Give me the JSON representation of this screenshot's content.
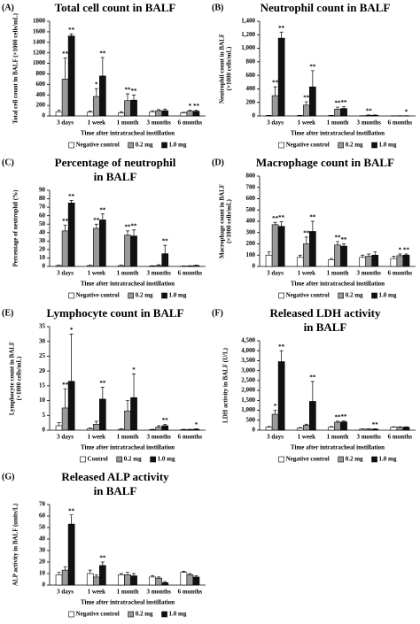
{
  "chart_data": [
    {
      "type": "bar",
      "panel": "(A)",
      "title": [
        "Total cell count in BALF"
      ],
      "ylabel": [
        "Total cell count in BALF (×1000 cells/mL)"
      ],
      "xlabel": "Time after intratracheal instillation",
      "categories": [
        "3 days",
        "1 week",
        "1 month",
        "3 months",
        "6 months"
      ],
      "ylim": [
        0,
        1800
      ],
      "yticks": [
        0,
        200,
        400,
        600,
        800,
        1000,
        1200,
        1400,
        1600,
        1800
      ],
      "series": [
        {
          "name": "Negative control",
          "color": "#ffffff",
          "values": [
            80,
            70,
            60,
            80,
            60
          ],
          "errors": [
            30,
            20,
            20,
            20,
            10
          ],
          "significance": [
            null,
            null,
            null,
            null,
            null
          ]
        },
        {
          "name": "0.2 mg",
          "color": "#9a9a9a",
          "values": [
            700,
            370,
            290,
            100,
            90
          ],
          "errors": [
            400,
            150,
            130,
            20,
            20
          ],
          "significance": [
            "**",
            "*",
            "**",
            null,
            "*"
          ]
        },
        {
          "name": "1.0 mg",
          "color": "#111111",
          "values": [
            1520,
            760,
            300,
            100,
            90
          ],
          "errors": [
            40,
            350,
            100,
            30,
            20
          ],
          "significance": [
            "**",
            "**",
            "**",
            null,
            "**"
          ]
        }
      ]
    },
    {
      "type": "bar",
      "panel": "(B)",
      "title": [
        "Neutrophil count in BALF"
      ],
      "ylabel": [
        "Neutrophil count in BALF",
        "(×1000 cells/mL)"
      ],
      "xlabel": "Time after intratracheal instillation",
      "categories": [
        "3 days",
        "1 week",
        "1 month",
        "3 months",
        "6 months"
      ],
      "ylim": [
        0,
        1400
      ],
      "yticks": [
        0,
        200,
        400,
        600,
        800,
        {
          "value": 1000,
          "label": "1,000"
        },
        {
          "value": 1200,
          "label": "1,200"
        },
        {
          "value": 1400,
          "label": "1,400"
        }
      ],
      "series": [
        {
          "name": "Negative control",
          "color": "#ffffff",
          "values": [
            5,
            5,
            5,
            2,
            1
          ],
          "errors": [
            3,
            3,
            3,
            1,
            1
          ],
          "significance": [
            null,
            null,
            null,
            null,
            null
          ]
        },
        {
          "name": "0.2 mg",
          "color": "#9a9a9a",
          "values": [
            300,
            160,
            100,
            10,
            2
          ],
          "errors": [
            130,
            50,
            30,
            5,
            1
          ],
          "significance": [
            "**",
            "**",
            "**",
            "**",
            null
          ]
        },
        {
          "name": "1.0 mg",
          "color": "#111111",
          "values": [
            1150,
            430,
            110,
            10,
            2
          ],
          "errors": [
            90,
            240,
            30,
            5,
            1
          ],
          "significance": [
            "**",
            "**",
            "**",
            null,
            "*"
          ]
        }
      ]
    },
    {
      "type": "bar",
      "panel": "(C)",
      "title": [
        "Percentage of neutrophil",
        "in BALF"
      ],
      "ylabel": [
        "Percentage of neutrophil (%)"
      ],
      "xlabel": "Time after intratracheal instillation",
      "categories": [
        "3 days",
        "1 week",
        "1 month",
        "3 months",
        "6 months"
      ],
      "ylim": [
        0,
        90
      ],
      "yticks": [
        0,
        10,
        20,
        30,
        40,
        50,
        60,
        70,
        80,
        90
      ],
      "series": [
        {
          "name": "Negative control",
          "color": "#ffffff",
          "values": [
            1,
            1,
            1,
            0.5,
            0.3
          ],
          "errors": [
            0.5,
            0.5,
            0.5,
            0.3,
            0.2
          ],
          "significance": [
            null,
            null,
            null,
            null,
            null
          ]
        },
        {
          "name": "0.2 mg",
          "color": "#9a9a9a",
          "values": [
            42,
            45,
            37,
            1,
            0.5
          ],
          "errors": [
            7,
            5,
            5,
            1,
            0.3
          ],
          "significance": [
            "**",
            "**",
            "**",
            null,
            null
          ]
        },
        {
          "name": "1.0 mg",
          "color": "#111111",
          "values": [
            75,
            55,
            36,
            15,
            1
          ],
          "errors": [
            3,
            7,
            7,
            10,
            0.5
          ],
          "significance": [
            "**",
            "**",
            "**",
            "**",
            null
          ]
        }
      ]
    },
    {
      "type": "bar",
      "panel": "(D)",
      "title": [
        "Macrophage count in BALF"
      ],
      "ylabel": [
        "Macrophage count in BALF",
        "(×1000 cells/mL)"
      ],
      "xlabel": "Time after intratracheal instillation",
      "categories": [
        "3 days",
        "1 week",
        "1 month",
        "3 months",
        "6 months"
      ],
      "ylim": [
        0,
        800
      ],
      "yticks": [
        0,
        100,
        200,
        300,
        400,
        500,
        600,
        700,
        800
      ],
      "series": [
        {
          "name": "Negative control",
          "color": "#ffffff",
          "values": [
            100,
            80,
            60,
            80,
            70
          ],
          "errors": [
            30,
            20,
            10,
            20,
            20
          ],
          "significance": [
            null,
            null,
            null,
            null,
            null
          ]
        },
        {
          "name": "0.2 mg",
          "color": "#9a9a9a",
          "values": [
            370,
            200,
            190,
            90,
            95
          ],
          "errors": [
            20,
            60,
            30,
            20,
            15
          ],
          "significance": [
            "**",
            "**",
            "**",
            null,
            "*"
          ]
        },
        {
          "name": "1.0 mg",
          "color": "#111111",
          "values": [
            355,
            310,
            180,
            100,
            100
          ],
          "errors": [
            40,
            90,
            20,
            30,
            10
          ],
          "significance": [
            "**",
            "**",
            "**",
            null,
            "**"
          ]
        }
      ]
    },
    {
      "type": "bar",
      "panel": "(E)",
      "title": [
        "Lymphocyte count in BALF"
      ],
      "ylabel": [
        "Lymphocyte count in BALF",
        "(×1000 cells/mL)"
      ],
      "xlabel": "Time after intratracheal instillation",
      "categories": [
        "3 days",
        "1 week",
        "1 month",
        "3 months",
        "6 months"
      ],
      "ylim": [
        0,
        35
      ],
      "yticks": [
        0,
        5,
        10,
        15,
        20,
        25,
        30,
        35
      ],
      "series": [
        {
          "name": "Control",
          "color": "#ffffff",
          "values": [
            1.5,
            0.5,
            0.3,
            0.2,
            0.2
          ],
          "errors": [
            1,
            0.3,
            0.2,
            0.1,
            0.1
          ],
          "significance": [
            null,
            null,
            null,
            null,
            null
          ]
        },
        {
          "name": "0.2 mg",
          "color": "#9a9a9a",
          "values": [
            7.5,
            2,
            6.5,
            1,
            0.2
          ],
          "errors": [
            6.5,
            1,
            3.5,
            0.5,
            0.1
          ],
          "significance": [
            "**",
            null,
            null,
            null,
            null
          ]
        },
        {
          "name": "1.0 mg",
          "color": "#111111",
          "values": [
            16.5,
            10.5,
            11,
            1.5,
            0.3
          ],
          "errors": [
            16,
            4,
            8,
            0.5,
            0.2
          ],
          "significance": [
            "*",
            "**",
            "*",
            "**",
            "*"
          ]
        }
      ]
    },
    {
      "type": "bar",
      "panel": "(F)",
      "title": [
        "Released LDH activity",
        "in BALF"
      ],
      "ylabel": [
        "LDH activity in BALF (U/L)"
      ],
      "xlabel": "Time after intratracheal instillation",
      "categories": [
        "3 days",
        "1 week",
        "1 month",
        "3 months",
        "6 months"
      ],
      "ylim": [
        0,
        4500
      ],
      "yticks": [
        0,
        500,
        {
          "value": 1000,
          "label": "1,000"
        },
        {
          "value": 1500,
          "label": "1,500"
        },
        {
          "value": 2000,
          "label": "2,000"
        },
        {
          "value": 2500,
          "label": "2,500"
        },
        {
          "value": 3000,
          "label": "3,000"
        },
        {
          "value": 3500,
          "label": "3,500"
        },
        {
          "value": 4000,
          "label": "4,000"
        },
        {
          "value": 4500,
          "label": "4,500"
        }
      ],
      "series": [
        {
          "name": "Negative control",
          "color": "#ffffff",
          "values": [
            150,
            100,
            150,
            50,
            150
          ],
          "errors": [
            30,
            30,
            30,
            20,
            20
          ],
          "significance": [
            null,
            null,
            null,
            null,
            null
          ]
        },
        {
          "name": "0.2 mg",
          "color": "#9a9a9a",
          "values": [
            800,
            250,
            400,
            50,
            150
          ],
          "errors": [
            200,
            50,
            50,
            20,
            20
          ],
          "significance": [
            "*",
            null,
            "**",
            null,
            null
          ]
        },
        {
          "name": "1.0 mg",
          "color": "#111111",
          "values": [
            3450,
            1450,
            420,
            50,
            150
          ],
          "errors": [
            550,
            1000,
            50,
            20,
            20
          ],
          "significance": [
            "**",
            "**",
            "**",
            "**",
            null
          ]
        }
      ]
    },
    {
      "type": "bar",
      "panel": "(G)",
      "title": [
        "Released ALP activity",
        "in BALF"
      ],
      "ylabel": [
        "ALP activity in BALF (units/L)"
      ],
      "xlabel": "Time after intratracheal instillation",
      "categories": [
        "3 days",
        "1 week",
        "1 month",
        "3 months",
        "6 months"
      ],
      "ylim": [
        0,
        70
      ],
      "yticks": [
        0,
        10,
        20,
        30,
        40,
        50,
        60,
        70
      ],
      "series": [
        {
          "name": "Negative control",
          "color": "#ffffff",
          "values": [
            9,
            10,
            9,
            7,
            11
          ],
          "errors": [
            2,
            3,
            1,
            1,
            1
          ],
          "significance": [
            null,
            null,
            null,
            null,
            null
          ]
        },
        {
          "name": "0.2 mg",
          "color": "#9a9a9a",
          "values": [
            13,
            7,
            9,
            6,
            9
          ],
          "errors": [
            3,
            2,
            2,
            1,
            1
          ],
          "significance": [
            null,
            null,
            null,
            null,
            null
          ]
        },
        {
          "name": "1.0 mg",
          "color": "#111111",
          "values": [
            53,
            17,
            8,
            2,
            7
          ],
          "errors": [
            8,
            3,
            2,
            1,
            1
          ],
          "significance": [
            "**",
            "**",
            null,
            null,
            null
          ]
        }
      ]
    }
  ]
}
